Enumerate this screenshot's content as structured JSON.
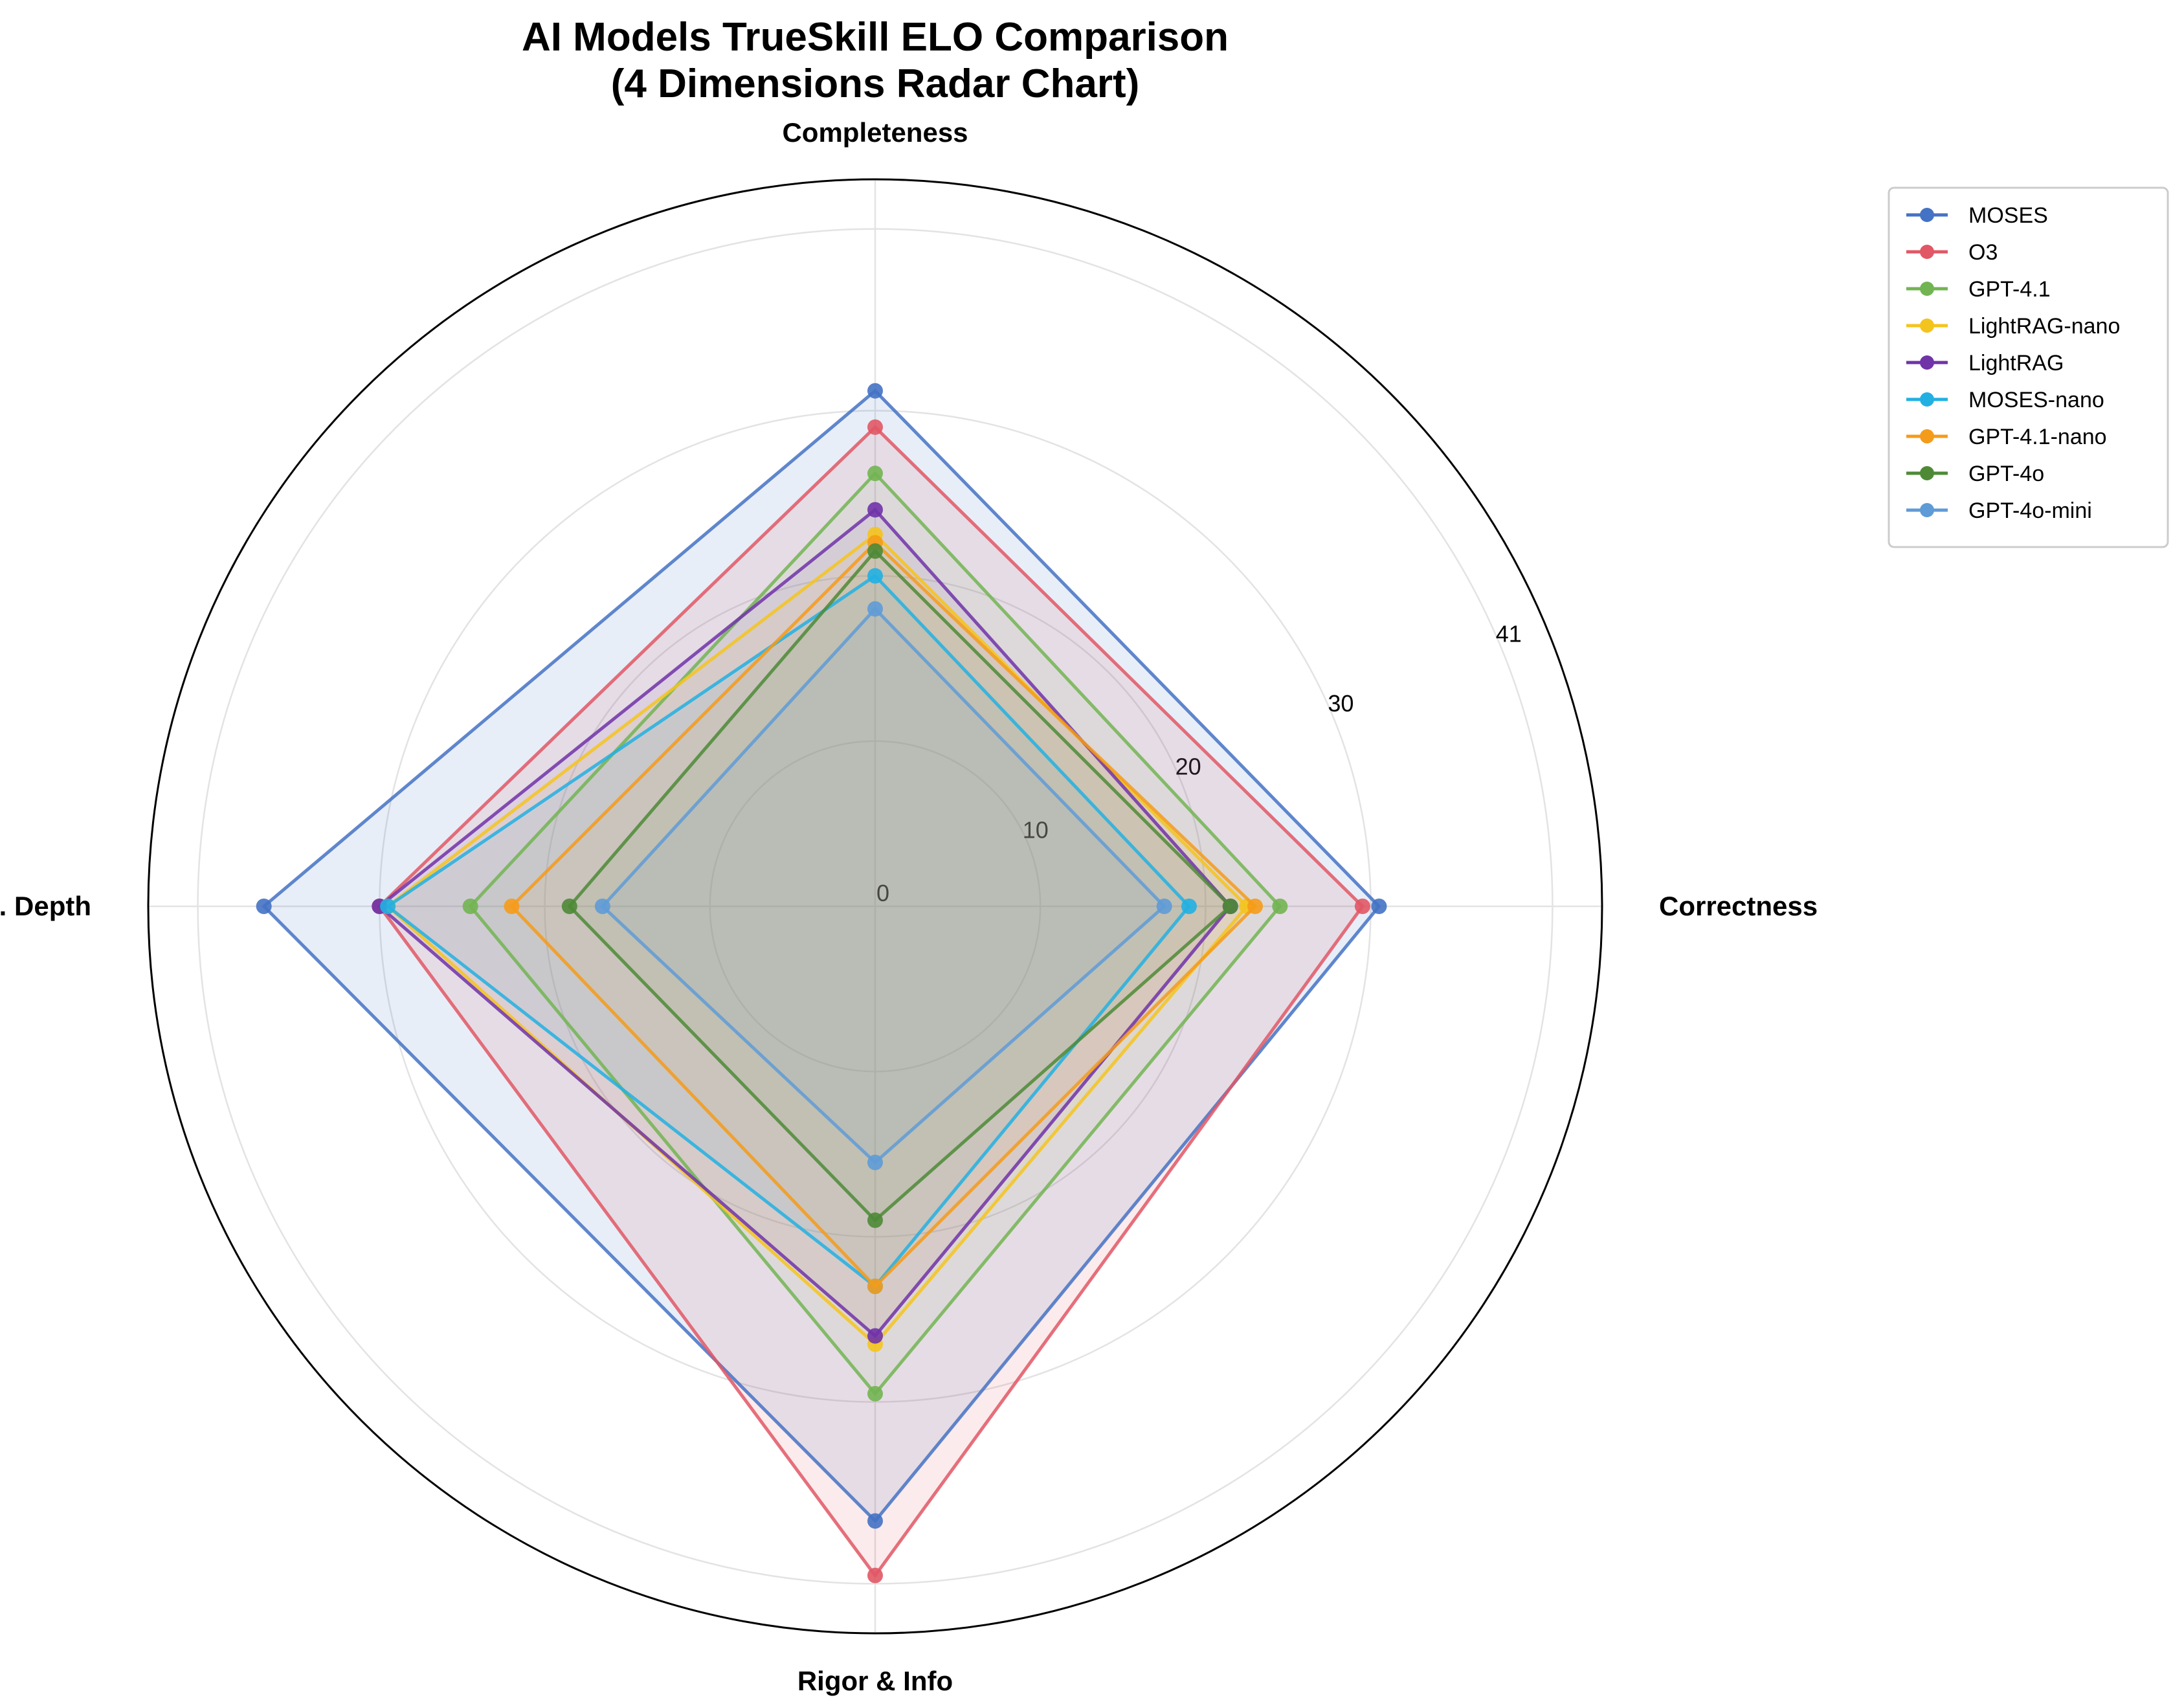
{
  "chart_data": {
    "type": "radar",
    "title": "AI Models TrueSkill ELO Comparison",
    "subtitle": "(4 Dimensions Radar Chart)",
    "axes": [
      "Completeness",
      "Correctness",
      "Rigor & Info",
      "Theo. Depth"
    ],
    "rlim": [
      0,
      44
    ],
    "radial_ticks": [
      {
        "value": 0,
        "label": "0"
      },
      {
        "value": 10,
        "label": "10"
      },
      {
        "value": 20,
        "label": "20"
      },
      {
        "value": 30,
        "label": "30"
      },
      {
        "value": 41,
        "label": "41"
      }
    ],
    "grid": true,
    "legend_position": "top-right",
    "series": [
      {
        "name": "MOSES",
        "color": "#4472c4",
        "fill": true,
        "values": [
          31.2,
          30.5,
          37.2,
          37.0
        ]
      },
      {
        "name": "O3",
        "color": "#e15765",
        "fill": true,
        "values": [
          29.0,
          29.5,
          40.5,
          30.0
        ]
      },
      {
        "name": "GPT-4.1",
        "color": "#72b452",
        "fill": false,
        "values": [
          26.2,
          24.5,
          29.5,
          24.5
        ]
      },
      {
        "name": "LightRAG-nano",
        "color": "#f4c41e",
        "fill": false,
        "values": [
          22.5,
          22.5,
          26.5,
          29.5
        ]
      },
      {
        "name": "LightRAG",
        "color": "#7033a8",
        "fill": false,
        "values": [
          24.0,
          21.5,
          26.0,
          30.0
        ]
      },
      {
        "name": "MOSES-nano",
        "color": "#22b0e2",
        "fill": false,
        "values": [
          20.0,
          19.0,
          23.0,
          29.5
        ]
      },
      {
        "name": "GPT-4.1-nano",
        "color": "#f59b1a",
        "fill": false,
        "values": [
          22.0,
          23.0,
          23.0,
          22.0
        ]
      },
      {
        "name": "GPT-4o",
        "color": "#4e8a36",
        "fill": false,
        "values": [
          21.5,
          21.5,
          19.0,
          18.5
        ]
      },
      {
        "name": "GPT-4o-mini",
        "color": "#5f9bd6",
        "fill": false,
        "values": [
          18.0,
          17.5,
          15.5,
          16.5
        ]
      }
    ]
  }
}
